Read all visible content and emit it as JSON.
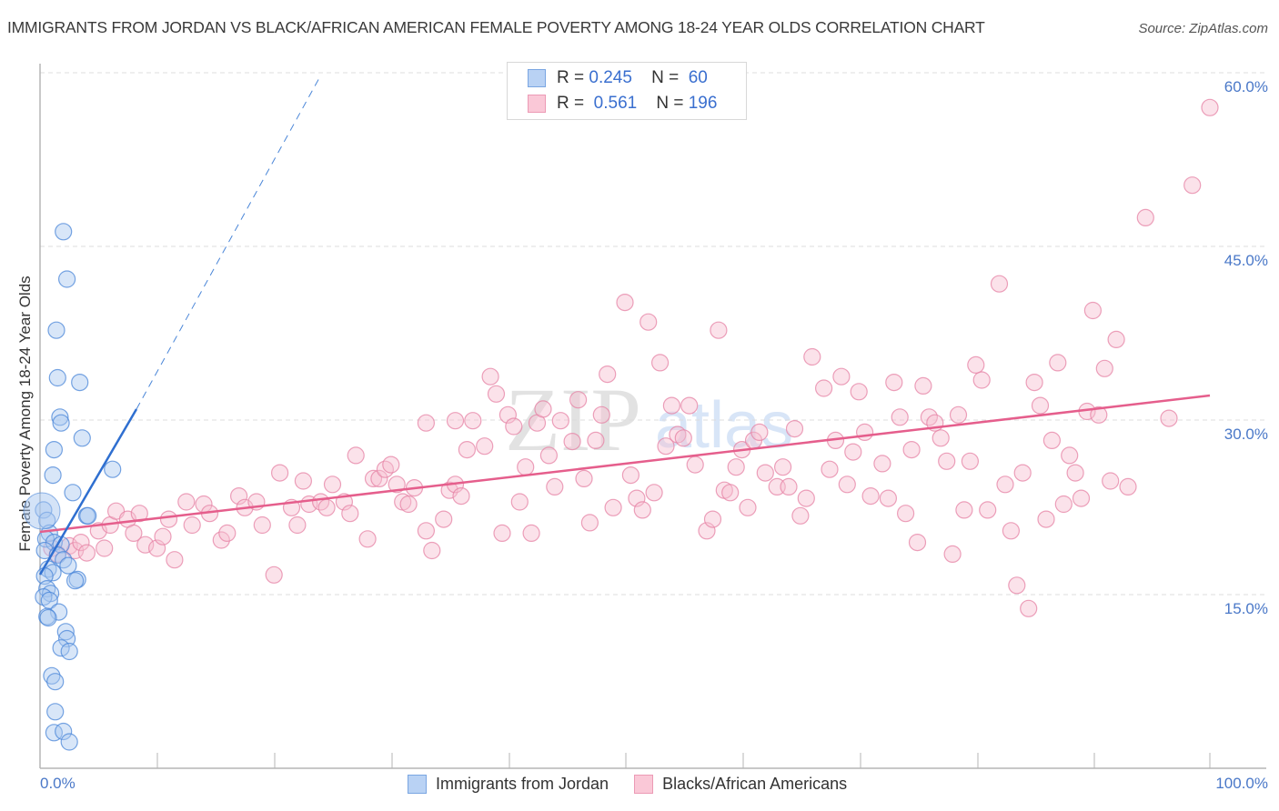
{
  "header": {
    "title": "IMMIGRANTS FROM JORDAN VS BLACK/AFRICAN AMERICAN FEMALE POVERTY AMONG 18-24 YEAR OLDS CORRELATION CHART",
    "source": "Source: ZipAtlas.com"
  },
  "axes": {
    "y_label": "Female Poverty Among 18-24 Year Olds",
    "y_ticks": [
      "60.0%",
      "45.0%",
      "30.0%",
      "15.0%"
    ],
    "x_min_label": "0.0%",
    "x_max_label": "100.0%"
  },
  "legend_top": {
    "rows": [
      {
        "r_label": "R =",
        "r_value": "0.245",
        "n_label": "N =",
        "n_value": "60"
      },
      {
        "r_label": "R =",
        "r_value": "0.561",
        "n_label": "N =",
        "n_value": "196"
      }
    ]
  },
  "legend_bottom": {
    "items": [
      {
        "label": "Immigrants from Jordan"
      },
      {
        "label": "Blacks/African Americans"
      }
    ]
  },
  "watermark": {
    "zip": "ZIP",
    "atlas": "atlas"
  },
  "colors": {
    "blue_fill": "#a9c8f0",
    "blue_stroke": "#4a86d8",
    "blue_line": "#2f6fd0",
    "pink_fill": "#f7bfd0",
    "pink_stroke": "#e682a4",
    "pink_line": "#e55e8c",
    "tick_label": "#4a78c8"
  },
  "chart_data": {
    "type": "scatter",
    "title": "IMMIGRANTS FROM JORDAN VS BLACK/AFRICAN AMERICAN FEMALE POVERTY AMONG 18-24 YEAR OLDS CORRELATION CHART",
    "xlabel": "",
    "ylabel": "Female Poverty Among 18-24 Year Olds",
    "xlim": [
      0,
      100
    ],
    "ylim": [
      0,
      63
    ],
    "y_ticks": [
      15,
      30,
      45,
      60
    ],
    "x_tick_labels": [
      "0.0%",
      "100.0%"
    ],
    "grid": "horizontal dashed",
    "legend_position": "bottom",
    "series": [
      {
        "name": "Immigrants from Jordan",
        "R": 0.245,
        "N": 60,
        "trend": {
          "x": [
            0,
            8.3
          ],
          "y": [
            16.5,
            30.8
          ],
          "dashed_extension_to": [
            24,
            59.7
          ]
        },
        "points": [
          [
            2.0,
            46.3
          ],
          [
            2.3,
            42.2
          ],
          [
            1.4,
            37.8
          ],
          [
            1.5,
            33.7
          ],
          [
            3.4,
            33.3
          ],
          [
            1.7,
            30.3
          ],
          [
            1.8,
            29.8
          ],
          [
            3.6,
            28.5
          ],
          [
            1.2,
            27.5
          ],
          [
            1.1,
            25.3
          ],
          [
            6.2,
            25.8
          ],
          [
            2.8,
            23.8
          ],
          [
            0.3,
            22.3
          ],
          [
            0.6,
            21.4
          ],
          [
            4.0,
            21.8
          ],
          [
            4.1,
            21.8
          ],
          [
            0.8,
            20.3
          ],
          [
            0.5,
            19.8
          ],
          [
            1.2,
            19.5
          ],
          [
            1.8,
            19.3
          ],
          [
            0.4,
            18.8
          ],
          [
            1.5,
            18.4
          ],
          [
            2.0,
            18.0
          ],
          [
            2.4,
            17.5
          ],
          [
            0.7,
            17.2
          ],
          [
            1.1,
            16.9
          ],
          [
            0.4,
            16.6
          ],
          [
            3.2,
            16.3
          ],
          [
            3.0,
            16.2
          ],
          [
            0.6,
            15.5
          ],
          [
            0.9,
            15.1
          ],
          [
            0.3,
            14.8
          ],
          [
            0.8,
            14.5
          ],
          [
            1.6,
            13.5
          ],
          [
            0.6,
            13.1
          ],
          [
            0.7,
            13.0
          ],
          [
            2.2,
            11.8
          ],
          [
            2.3,
            11.2
          ],
          [
            1.8,
            10.4
          ],
          [
            2.5,
            10.1
          ],
          [
            1.0,
            8.0
          ],
          [
            1.3,
            7.5
          ],
          [
            1.3,
            4.9
          ],
          [
            1.2,
            3.1
          ],
          [
            2.0,
            3.2
          ],
          [
            2.5,
            2.3
          ]
        ]
      },
      {
        "name": "Blacks/African Americans",
        "R": 0.561,
        "N": 196,
        "trend": {
          "x": [
            0,
            100
          ],
          "y": [
            20.3,
            32.1
          ]
        },
        "points": [
          [
            1.0,
            19.0
          ],
          [
            1.5,
            18.5
          ],
          [
            2.5,
            19.2
          ],
          [
            3.0,
            18.8
          ],
          [
            3.5,
            19.5
          ],
          [
            4.0,
            18.6
          ],
          [
            5.0,
            20.5
          ],
          [
            5.5,
            19.0
          ],
          [
            6.0,
            21.0
          ],
          [
            6.5,
            22.2
          ],
          [
            7.5,
            21.5
          ],
          [
            8.0,
            20.3
          ],
          [
            8.5,
            22.0
          ],
          [
            9.0,
            19.3
          ],
          [
            10.0,
            19.0
          ],
          [
            10.5,
            20.0
          ],
          [
            11.0,
            21.5
          ],
          [
            11.5,
            18.0
          ],
          [
            12.5,
            23.0
          ],
          [
            13.0,
            21.0
          ],
          [
            14.0,
            22.8
          ],
          [
            14.5,
            22.0
          ],
          [
            15.5,
            19.7
          ],
          [
            16.0,
            20.3
          ],
          [
            17.0,
            23.5
          ],
          [
            17.5,
            22.5
          ],
          [
            18.5,
            23.0
          ],
          [
            19.0,
            21.0
          ],
          [
            20.0,
            16.7
          ],
          [
            20.5,
            25.5
          ],
          [
            21.5,
            22.5
          ],
          [
            22.0,
            21.0
          ],
          [
            22.5,
            24.8
          ],
          [
            23.0,
            22.8
          ],
          [
            24.0,
            23.0
          ],
          [
            24.5,
            22.5
          ],
          [
            25.0,
            24.5
          ],
          [
            26.0,
            23.0
          ],
          [
            26.5,
            22.0
          ],
          [
            27.0,
            27.0
          ],
          [
            28.0,
            19.8
          ],
          [
            28.5,
            25.0
          ],
          [
            29.0,
            25.0
          ],
          [
            29.5,
            25.8
          ],
          [
            30.0,
            26.2
          ],
          [
            30.5,
            24.5
          ],
          [
            31.0,
            23.0
          ],
          [
            31.5,
            22.8
          ],
          [
            32.0,
            24.2
          ],
          [
            33.0,
            20.5
          ],
          [
            33.5,
            18.8
          ],
          [
            33.0,
            29.8
          ],
          [
            34.5,
            21.5
          ],
          [
            35.0,
            24.0
          ],
          [
            35.5,
            24.5
          ],
          [
            36.0,
            23.5
          ],
          [
            35.5,
            30.0
          ],
          [
            36.5,
            27.5
          ],
          [
            37.0,
            30.0
          ],
          [
            38.0,
            27.8
          ],
          [
            38.5,
            33.8
          ],
          [
            39.0,
            32.3
          ],
          [
            39.5,
            20.3
          ],
          [
            40.0,
            30.5
          ],
          [
            40.5,
            29.5
          ],
          [
            41.0,
            23.0
          ],
          [
            41.5,
            26.0
          ],
          [
            42.0,
            20.3
          ],
          [
            42.5,
            29.8
          ],
          [
            43.0,
            31.0
          ],
          [
            43.5,
            27.0
          ],
          [
            44.0,
            24.3
          ],
          [
            44.5,
            30.0
          ],
          [
            45.5,
            28.2
          ],
          [
            46.0,
            31.8
          ],
          [
            46.5,
            25.0
          ],
          [
            47.0,
            21.2
          ],
          [
            47.5,
            28.3
          ],
          [
            48.0,
            30.5
          ],
          [
            48.5,
            34.0
          ],
          [
            49.0,
            22.5
          ],
          [
            50.0,
            40.2
          ],
          [
            50.5,
            25.3
          ],
          [
            51.0,
            23.3
          ],
          [
            51.5,
            22.3
          ],
          [
            52.0,
            38.5
          ],
          [
            52.5,
            23.8
          ],
          [
            53.0,
            35.0
          ],
          [
            53.5,
            27.8
          ],
          [
            54.0,
            31.3
          ],
          [
            54.5,
            28.8
          ],
          [
            55.0,
            28.5
          ],
          [
            55.5,
            31.3
          ],
          [
            56.0,
            26.2
          ],
          [
            57.0,
            20.5
          ],
          [
            57.5,
            21.5
          ],
          [
            58.0,
            37.8
          ],
          [
            58.5,
            24.0
          ],
          [
            59.0,
            23.8
          ],
          [
            59.5,
            26.0
          ],
          [
            60.0,
            27.5
          ],
          [
            60.5,
            22.5
          ],
          [
            61.0,
            28.3
          ],
          [
            61.5,
            29.0
          ],
          [
            62.0,
            25.5
          ],
          [
            63.0,
            24.3
          ],
          [
            63.5,
            26.0
          ],
          [
            64.0,
            24.3
          ],
          [
            64.5,
            29.3
          ],
          [
            65.0,
            21.8
          ],
          [
            65.5,
            23.3
          ],
          [
            66.0,
            35.5
          ],
          [
            67.0,
            32.8
          ],
          [
            67.5,
            25.8
          ],
          [
            68.0,
            28.3
          ],
          [
            68.5,
            33.8
          ],
          [
            69.0,
            24.5
          ],
          [
            69.5,
            27.3
          ],
          [
            70.0,
            32.5
          ],
          [
            70.5,
            29.0
          ],
          [
            71.0,
            23.5
          ],
          [
            72.0,
            26.3
          ],
          [
            72.5,
            23.3
          ],
          [
            73.0,
            33.3
          ],
          [
            73.5,
            30.3
          ],
          [
            74.0,
            22.0
          ],
          [
            74.5,
            27.5
          ],
          [
            75.0,
            19.5
          ],
          [
            75.5,
            33.0
          ],
          [
            76.0,
            30.3
          ],
          [
            76.5,
            29.8
          ],
          [
            77.0,
            28.5
          ],
          [
            77.5,
            26.5
          ],
          [
            78.0,
            18.5
          ],
          [
            78.5,
            30.5
          ],
          [
            79.0,
            22.3
          ],
          [
            79.5,
            26.5
          ],
          [
            80.0,
            34.8
          ],
          [
            80.5,
            33.5
          ],
          [
            81.0,
            22.3
          ],
          [
            82.0,
            41.8
          ],
          [
            82.5,
            24.5
          ],
          [
            83.0,
            20.5
          ],
          [
            83.5,
            15.8
          ],
          [
            84.0,
            25.5
          ],
          [
            84.5,
            13.8
          ],
          [
            85.0,
            33.3
          ],
          [
            85.5,
            31.3
          ],
          [
            86.0,
            21.5
          ],
          [
            86.5,
            28.3
          ],
          [
            87.0,
            35.0
          ],
          [
            87.5,
            22.8
          ],
          [
            88.0,
            27.0
          ],
          [
            88.5,
            25.5
          ],
          [
            89.0,
            23.3
          ],
          [
            89.5,
            30.8
          ],
          [
            90.0,
            39.5
          ],
          [
            90.5,
            30.5
          ],
          [
            91.0,
            34.5
          ],
          [
            91.5,
            24.8
          ],
          [
            92.0,
            37.0
          ],
          [
            93.0,
            24.3
          ],
          [
            94.5,
            47.5
          ],
          [
            96.5,
            30.2
          ],
          [
            98.5,
            50.3
          ],
          [
            100.0,
            57.0
          ]
        ]
      }
    ]
  }
}
